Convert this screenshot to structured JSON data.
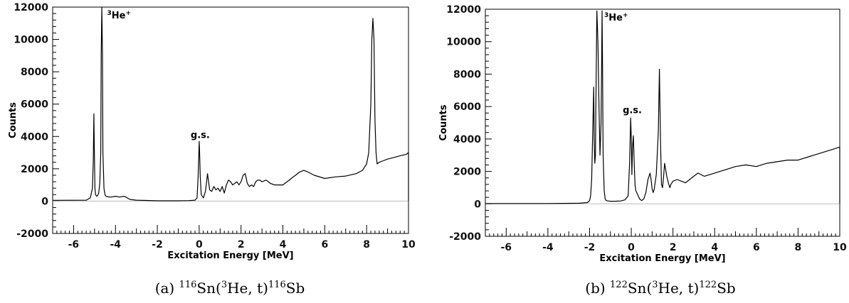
{
  "chart_data": [
    {
      "type": "line",
      "panel_label": "(a)",
      "caption": {
        "target_A": "116",
        "target_sym": "Sn",
        "reaction": "(3He, t)",
        "reaction_sup": "3",
        "reaction_rest": "He, t)",
        "product_A": "116",
        "product_sym": "Sb"
      },
      "xlabel": "Excitation Energy [MeV]",
      "ylabel": "Counts",
      "xlim": [
        -7,
        10
      ],
      "ylim": [
        -2000,
        12000
      ],
      "x_ticks": [
        "-6",
        "-4",
        "-2",
        "0",
        "2",
        "4",
        "6",
        "8",
        "10"
      ],
      "y_ticks": [
        "-2000",
        "0",
        "2000",
        "4000",
        "6000",
        "8000",
        "10000",
        "12000"
      ],
      "annotations": [
        {
          "text": "3He+",
          "pre_sup": "3",
          "base": "He",
          "post_sup": "+",
          "x": -4.4,
          "y": 11300
        },
        {
          "text": "g.s.",
          "x": 0.05,
          "y": 3900
        }
      ],
      "series": [
        {
          "x": [
            -7,
            -5.4,
            -5.2,
            -5.1,
            -5.06,
            -5.03,
            -5.0,
            -4.98,
            -4.95,
            -4.9,
            -4.85,
            -4.8,
            -4.75,
            -4.7,
            -4.68,
            -4.65,
            -4.62,
            -4.6,
            -4.55,
            -4.5,
            -4.45,
            -4.4,
            -4.3,
            -4.2,
            -4.0,
            -3.8,
            -3.6,
            -3.5,
            -3.3,
            -3.0,
            -2.5,
            -2.0,
            -1.5,
            -1.0,
            -0.5,
            -0.2,
            -0.1,
            -0.05,
            0.0,
            0.02,
            0.05,
            0.1,
            0.2,
            0.3,
            0.4,
            0.45,
            0.5,
            0.6,
            0.7,
            0.8,
            0.9,
            1.0,
            1.1,
            1.2,
            1.3,
            1.4,
            1.5,
            1.6,
            1.7,
            1.8,
            1.9,
            2.0,
            2.1,
            2.2,
            2.3,
            2.4,
            2.5,
            2.6,
            2.7,
            2.8,
            2.9,
            3.0,
            3.2,
            3.4,
            3.6,
            3.8,
            4.0,
            4.2,
            4.4,
            4.6,
            4.8,
            5.0,
            5.2,
            5.5,
            6.0,
            6.5,
            7.0,
            7.5,
            7.8,
            8.0,
            8.1,
            8.2,
            8.25,
            8.3,
            8.35,
            8.4,
            8.45,
            8.5,
            8.6,
            8.8,
            9.0,
            9.3,
            9.6,
            9.9,
            10.0
          ],
          "y": [
            50,
            60,
            200,
            800,
            2500,
            5400,
            2500,
            800,
            400,
            300,
            350,
            500,
            1100,
            3000,
            9000,
            12000,
            9000,
            3000,
            800,
            400,
            300,
            280,
            250,
            250,
            300,
            250,
            300,
            250,
            100,
            60,
            40,
            20,
            20,
            20,
            30,
            60,
            200,
            1500,
            3700,
            3000,
            1500,
            400,
            200,
            600,
            1700,
            1200,
            700,
            600,
            900,
            700,
            800,
            600,
            900,
            500,
            1000,
            1300,
            1200,
            1000,
            1100,
            1200,
            1000,
            1200,
            1600,
            1700,
            1100,
            900,
            1000,
            900,
            1200,
            1300,
            1300,
            1200,
            1300,
            1100,
            1000,
            1000,
            1000,
            1200,
            1400,
            1600,
            1800,
            1900,
            1800,
            1600,
            1400,
            1500,
            1550,
            1700,
            1900,
            2300,
            3000,
            6000,
            10000,
            11300,
            10000,
            5000,
            3000,
            2300,
            2400,
            2500,
            2600,
            2700,
            2800,
            2900,
            3000
          ]
        }
      ]
    },
    {
      "type": "line",
      "panel_label": "(b)",
      "caption": {
        "target_A": "122",
        "target_sym": "Sn",
        "reaction": "(3He, t)",
        "reaction_sup": "3",
        "reaction_rest": "He, t)",
        "product_A": "122",
        "product_sym": "Sb"
      },
      "xlabel": "Excitation Energy [MeV]",
      "ylabel": "Counts",
      "xlim": [
        -7,
        10
      ],
      "ylim": [
        -2000,
        12000
      ],
      "x_ticks": [
        "-6",
        "-4",
        "-2",
        "0",
        "2",
        "4",
        "6",
        "8",
        "10"
      ],
      "y_ticks": [
        "-2000",
        "0",
        "2000",
        "4000",
        "6000",
        "8000",
        "10000",
        "12000"
      ],
      "annotations": [
        {
          "text": "3He+",
          "pre_sup": "3",
          "base": "He",
          "post_sup": "+",
          "x": -1.3,
          "y": 11300
        },
        {
          "text": "g.s.",
          "x": 0.05,
          "y": 5600
        }
      ],
      "series": [
        {
          "x": [
            -7,
            -4,
            -2.5,
            -2.1,
            -2.0,
            -1.95,
            -1.9,
            -1.85,
            -1.8,
            -1.78,
            -1.75,
            -1.72,
            -1.7,
            -1.65,
            -1.6,
            -1.55,
            -1.5,
            -1.45,
            -1.42,
            -1.4,
            -1.38,
            -1.35,
            -1.3,
            -1.25,
            -1.2,
            -1.1,
            -1.0,
            -0.8,
            -0.5,
            -0.3,
            -0.15,
            -0.08,
            -0.03,
            0.0,
            0.03,
            0.06,
            0.1,
            0.14,
            0.18,
            0.22,
            0.3,
            0.4,
            0.5,
            0.6,
            0.7,
            0.8,
            0.9,
            0.95,
            1.0,
            1.05,
            1.1,
            1.2,
            1.3,
            1.35,
            1.4,
            1.45,
            1.5,
            1.55,
            1.6,
            1.7,
            1.8,
            1.85,
            1.9,
            2.0,
            2.2,
            2.4,
            2.6,
            2.8,
            3.0,
            3.2,
            3.5,
            4.0,
            4.5,
            5.0,
            5.5,
            6.0,
            6.5,
            7.0,
            7.5,
            8.0,
            8.5,
            9.0,
            9.5,
            10.0
          ],
          "y": [
            20,
            20,
            40,
            80,
            200,
            500,
            1500,
            4500,
            7200,
            4000,
            2500,
            3000,
            6000,
            11900,
            10000,
            6000,
            3000,
            5000,
            9000,
            11900,
            9000,
            3000,
            800,
            300,
            200,
            180,
            160,
            160,
            180,
            250,
            500,
            2500,
            5300,
            4000,
            1800,
            3500,
            4200,
            2500,
            1200,
            800,
            600,
            300,
            200,
            300,
            700,
            1500,
            1900,
            1500,
            900,
            700,
            900,
            1800,
            4500,
            8300,
            4000,
            1200,
            1000,
            1700,
            2500,
            1700,
            1200,
            1000,
            1200,
            1400,
            1500,
            1400,
            1300,
            1500,
            1700,
            1900,
            1700,
            1900,
            2100,
            2300,
            2400,
            2300,
            2500,
            2600,
            2700,
            2700,
            2900,
            3100,
            3300,
            3500
          ]
        }
      ]
    }
  ]
}
